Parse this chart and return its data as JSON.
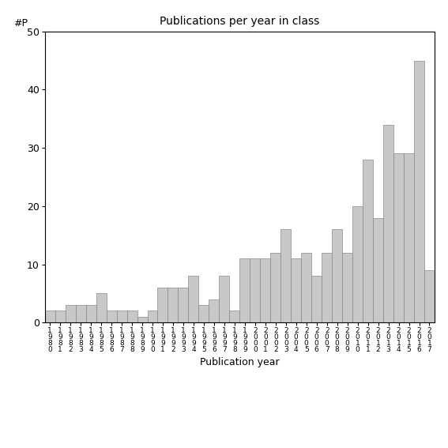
{
  "years": [
    "1980",
    "1981",
    "1982",
    "1983",
    "1984",
    "1985",
    "1986",
    "1987",
    "1988",
    "1989",
    "1990",
    "1991",
    "1992",
    "1993",
    "1994",
    "1995",
    "1996",
    "1997",
    "1998",
    "1999",
    "2000",
    "2001",
    "2002",
    "2003",
    "2004",
    "2005",
    "2006",
    "2007",
    "2008",
    "2009",
    "2010",
    "2011",
    "2012",
    "2013",
    "2014",
    "2015",
    "2016",
    "2017"
  ],
  "values": [
    2,
    2,
    3,
    3,
    3,
    5,
    2,
    2,
    2,
    1,
    2,
    6,
    6,
    6,
    8,
    3,
    4,
    8,
    2,
    11,
    11,
    11,
    12,
    16,
    11,
    12,
    8,
    12,
    16,
    12,
    20,
    28,
    18,
    34,
    29,
    29,
    45,
    9
  ],
  "title": "Publications per year in class",
  "xlabel": "Publication year",
  "ylabel": "#P",
  "ylim": [
    0,
    50
  ],
  "yticks": [
    0,
    10,
    20,
    30,
    40,
    50
  ],
  "bar_color": "#c8c8c8",
  "bar_edgecolor": "#888888",
  "bg_color": "#ffffff",
  "figsize": [
    5.67,
    5.67
  ],
  "dpi": 100
}
